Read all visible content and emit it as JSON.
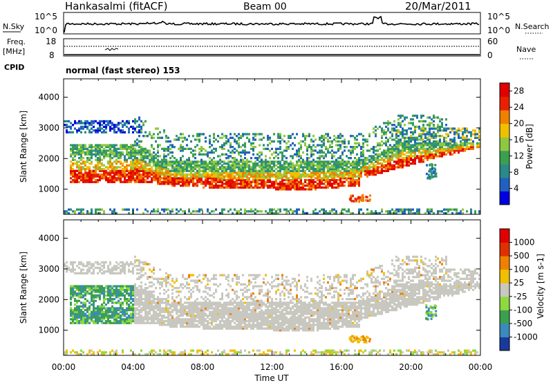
{
  "header": {
    "station": "Hankasalmi (fitACF)",
    "beam": "Beam 00",
    "date": "20/Mar/2011"
  },
  "side_labels": {
    "nsky": "N.Sky",
    "nsearch": "N.Search",
    "freq_line1": "Freq.",
    "freq_line2": "[MHz]",
    "nave": "Nave",
    "cpid": "CPID",
    "cpid_value": "normal (fast stereo) 153"
  },
  "noise_axes": {
    "left_ticks": [
      "10^5",
      "10^0"
    ],
    "right_ticks": [
      "10^5",
      "10^0"
    ]
  },
  "freq_axes": {
    "left_ticks": [
      "18",
      "8"
    ],
    "right_ticks": [
      "60",
      "0"
    ]
  },
  "x_axis": {
    "label": "Time UT",
    "ticks": [
      "00:00",
      "04:00",
      "08:00",
      "12:00",
      "16:00",
      "20:00",
      "00:00"
    ]
  },
  "chart_data": [
    {
      "type": "heatmap",
      "title": "",
      "ylabel": "Slant Range [km]",
      "xlabel": "",
      "ylim": [
        180,
        4600
      ],
      "xlim_hours": [
        0,
        24
      ],
      "y_ticks": [
        1000,
        2000,
        3000,
        4000
      ],
      "colorbar": {
        "label": "Power [dB]",
        "ticks": [
          4,
          8,
          12,
          16,
          20,
          24,
          28
        ],
        "range": [
          0,
          30
        ],
        "colors": [
          "#0000e0",
          "#2060c0",
          "#2a8a8a",
          "#3aa050",
          "#8fc840",
          "#f0c000",
          "#f08000",
          "#e82000",
          "#e00000"
        ]
      }
    },
    {
      "type": "heatmap",
      "title": "",
      "ylabel": "Slant Range [km]",
      "xlabel": "Time UT",
      "ylim": [
        180,
        4600
      ],
      "xlim_hours": [
        0,
        24
      ],
      "y_ticks": [
        1000,
        2000,
        3000,
        4000
      ],
      "colorbar": {
        "label": "Velocity [m s-1]",
        "ticks": [
          "1000",
          "500",
          "100",
          "25",
          "-25",
          "-100",
          "-500",
          "-1000"
        ],
        "colors": [
          "#1a3a9a",
          "#3a8ac0",
          "#3aa050",
          "#8fd840",
          "#c8c8c0",
          "#f0c000",
          "#f08000",
          "#e03000",
          "#e00000"
        ]
      }
    }
  ]
}
